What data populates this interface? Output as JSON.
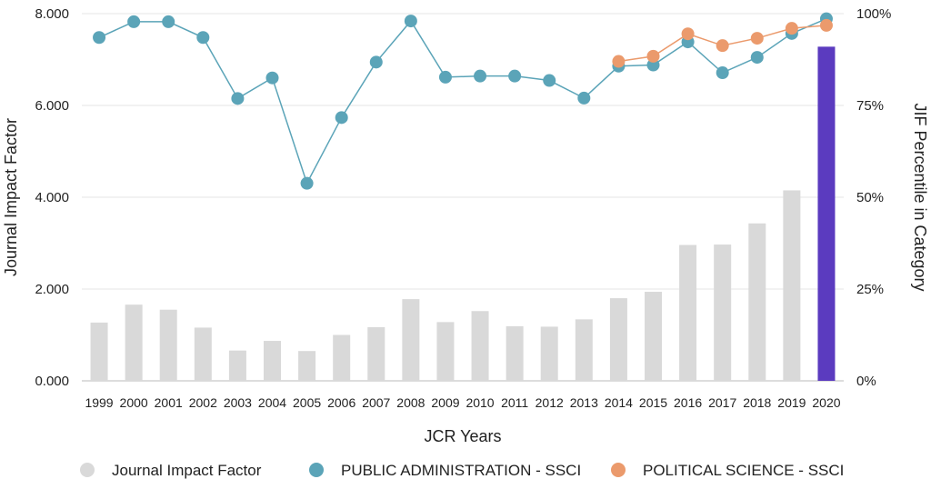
{
  "chart_data": {
    "type": "bar",
    "xlabel": "JCR Years",
    "ylabel": "Journal Impact Factor",
    "y2label": "JIF Percentile in Category",
    "ylim": [
      0,
      8
    ],
    "y2lim": [
      0,
      100
    ],
    "y_ticks": [
      "0.000",
      "2.000",
      "4.000",
      "6.000",
      "8.000"
    ],
    "y2_ticks": [
      "0%",
      "25%",
      "50%",
      "75%",
      "100%"
    ],
    "grid": true,
    "legend_position": "bottom",
    "categories": [
      "1999",
      "2000",
      "2001",
      "2002",
      "2003",
      "2004",
      "2005",
      "2006",
      "2007",
      "2008",
      "2009",
      "2010",
      "2011",
      "2012",
      "2013",
      "2014",
      "2015",
      "2016",
      "2017",
      "2018",
      "2019",
      "2020"
    ],
    "series": [
      {
        "name": "Journal Impact Factor",
        "kind": "bar",
        "axis": "left",
        "color": "#d9d9d9",
        "highlight_color": "#5b3bbf",
        "highlight_category": "2020",
        "values": [
          1.27,
          1.66,
          1.55,
          1.16,
          0.66,
          0.87,
          0.65,
          1.0,
          1.17,
          1.78,
          1.28,
          1.52,
          1.19,
          1.18,
          1.34,
          1.8,
          1.94,
          2.96,
          2.97,
          3.43,
          4.15,
          7.28
        ]
      },
      {
        "name": "PUBLIC ADMINISTRATION - SSCI",
        "kind": "line",
        "axis": "right",
        "color": "#5ba4b8",
        "values": [
          93.5,
          97.8,
          97.8,
          93.5,
          76.9,
          82.5,
          53.8,
          71.7,
          86.8,
          98.0,
          82.7,
          83.0,
          83.0,
          81.8,
          77.0,
          85.7,
          86.0,
          92.3,
          83.9,
          88.1,
          94.6,
          98.6
        ]
      },
      {
        "name": "POLITICAL SCIENCE - SSCI",
        "kind": "line",
        "axis": "right",
        "color": "#eb9a6c",
        "values": [
          null,
          null,
          null,
          null,
          null,
          null,
          null,
          null,
          null,
          null,
          null,
          null,
          null,
          null,
          null,
          87.0,
          88.4,
          94.5,
          91.3,
          93.3,
          96.0,
          96.8
        ]
      }
    ]
  }
}
